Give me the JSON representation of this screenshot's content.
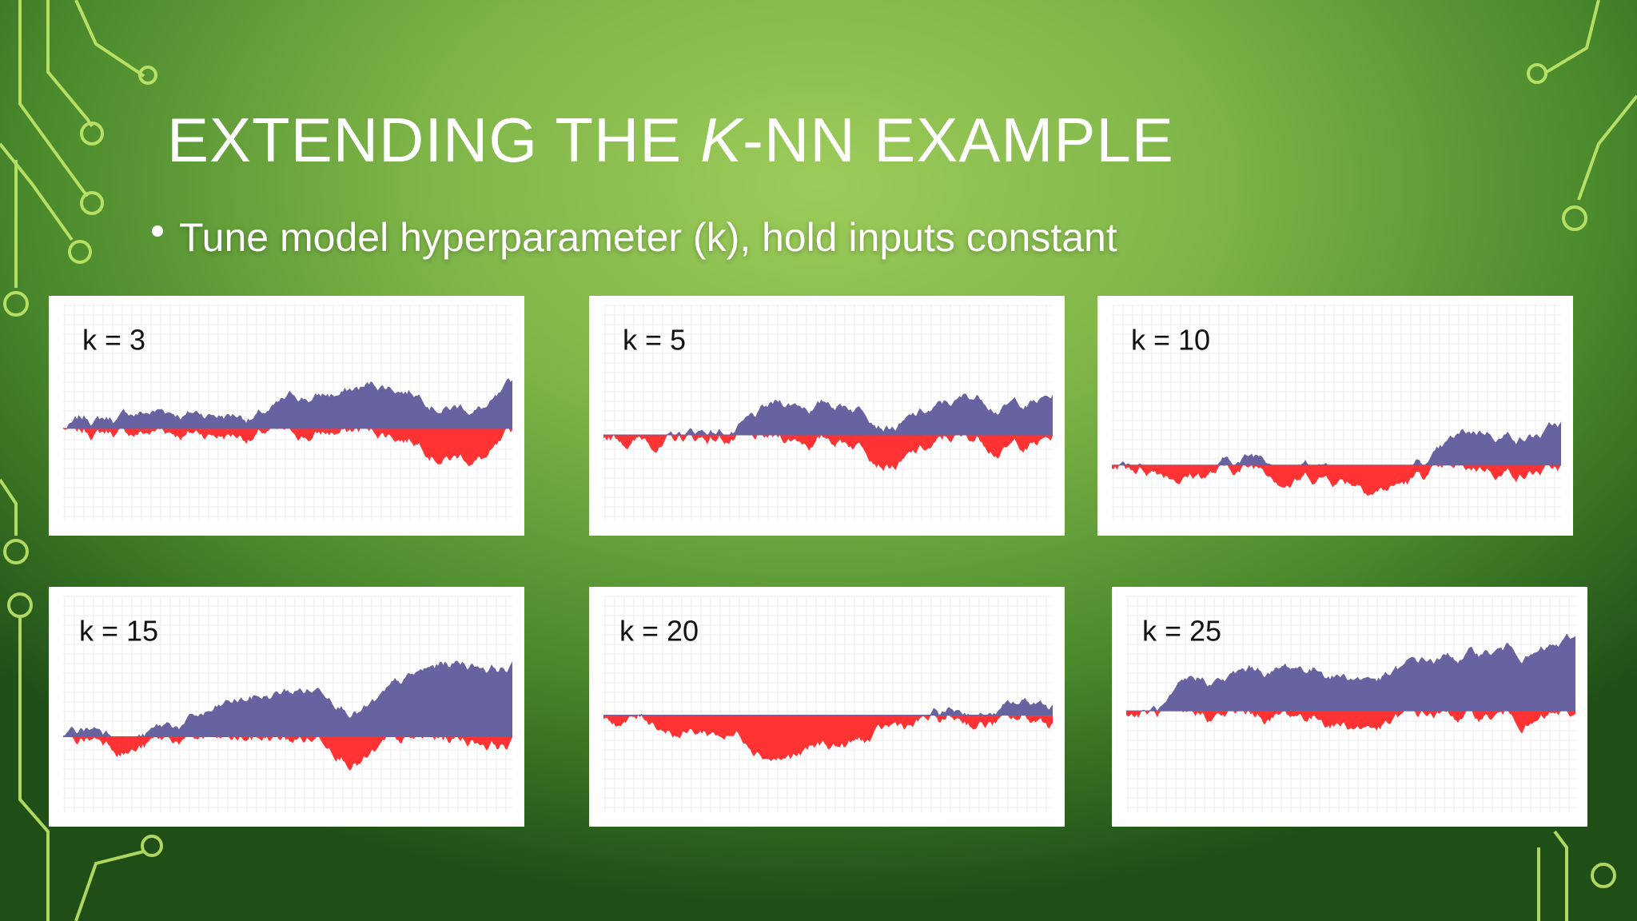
{
  "title_parts": [
    "EXTENDING THE ",
    "K",
    "-NN EXAMPLE"
  ],
  "bullet": "Tune model hyperparameter (k), hold inputs constant",
  "panels": [
    {
      "label": "k = 3"
    },
    {
      "label": "k = 5"
    },
    {
      "label": "k = 10"
    },
    {
      "label": "k = 15"
    },
    {
      "label": "k = 20"
    },
    {
      "label": "k = 25"
    }
  ]
}
